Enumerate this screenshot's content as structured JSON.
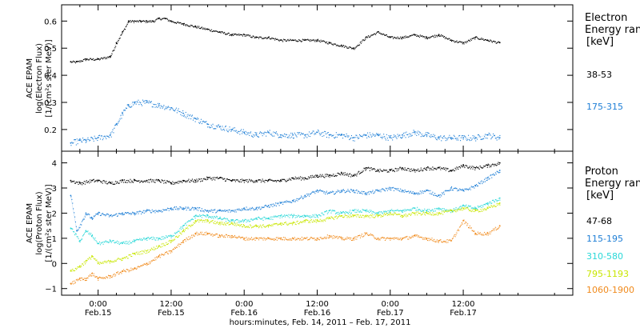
{
  "chart_data": [
    {
      "type": "scatter",
      "ylabel_lines": [
        "ACE EPAM",
        "log(Electron Flux)",
        "[1/(cm²s ster MeV)]"
      ],
      "legend_title_lines": [
        "Electron",
        "Energy ranges",
        "[keV]"
      ],
      "ylim": [
        0.12,
        0.66
      ],
      "yticks": [
        0.2,
        0.3,
        0.4,
        0.5,
        0.6
      ],
      "ytick_labels": [
        "0.2",
        "0.3",
        "0.4",
        "0.5",
        "0.6"
      ],
      "series": [
        {
          "name": "38-53",
          "color": "#000000",
          "x": [
            -4.5,
            -3.5,
            -2,
            0,
            2,
            3,
            4,
            5,
            6,
            7,
            8,
            9,
            10,
            11,
            12,
            14,
            16,
            18,
            20,
            22,
            24,
            26,
            28,
            30,
            32,
            34,
            36,
            38,
            40,
            42,
            44,
            46,
            48,
            50,
            52,
            54,
            56,
            58,
            60,
            62,
            64,
            66
          ],
          "y": [
            0.45,
            0.45,
            0.46,
            0.46,
            0.47,
            0.52,
            0.56,
            0.6,
            0.6,
            0.6,
            0.6,
            0.6,
            0.61,
            0.61,
            0.6,
            0.59,
            0.58,
            0.57,
            0.56,
            0.55,
            0.55,
            0.54,
            0.54,
            0.53,
            0.53,
            0.53,
            0.53,
            0.52,
            0.51,
            0.5,
            0.54,
            0.56,
            0.54,
            0.54,
            0.55,
            0.54,
            0.55,
            0.53,
            0.52,
            0.54,
            0.53,
            0.52
          ]
        },
        {
          "name": "175-315",
          "color": "#1f7fd6",
          "x": [
            -4.5,
            -3,
            -2,
            0,
            2,
            3,
            4,
            5,
            6,
            8,
            10,
            12,
            14,
            16,
            18,
            20,
            22,
            24,
            26,
            28,
            30,
            32,
            34,
            36,
            38,
            40,
            42,
            44,
            46,
            48,
            50,
            52,
            54,
            56,
            58,
            60,
            62,
            64,
            66
          ],
          "y": [
            0.15,
            0.16,
            0.16,
            0.17,
            0.18,
            0.22,
            0.26,
            0.29,
            0.3,
            0.3,
            0.29,
            0.28,
            0.26,
            0.24,
            0.22,
            0.21,
            0.2,
            0.19,
            0.18,
            0.19,
            0.18,
            0.18,
            0.18,
            0.19,
            0.18,
            0.18,
            0.17,
            0.18,
            0.18,
            0.17,
            0.18,
            0.19,
            0.18,
            0.17,
            0.17,
            0.17,
            0.17,
            0.18,
            0.17
          ]
        }
      ]
    },
    {
      "type": "scatter",
      "ylabel_lines": [
        "ACE EPAM",
        "log(Proton Flux)",
        "[1/(cm²s ster MeV)]"
      ],
      "legend_title_lines": [
        "Proton",
        "Energy ranges",
        "[keV]"
      ],
      "ylim": [
        -1.2,
        4.4
      ],
      "yticks": [
        -1,
        0,
        1,
        2,
        3,
        4
      ],
      "ytick_labels": [
        "−1",
        "0",
        "1",
        "2",
        "3",
        "4"
      ],
      "xlabel": "hours:minutes, Feb. 14, 2011 – Feb. 17, 2011",
      "xlim": [
        -6,
        78
      ],
      "xtick_hours": [
        0,
        12,
        24,
        36,
        48,
        60
      ],
      "xtick_labels": [
        [
          "0:00",
          "Feb.15"
        ],
        [
          "12:00",
          "Feb.15"
        ],
        [
          "0:00",
          "Feb.16"
        ],
        [
          "12:00",
          "Feb.16"
        ],
        [
          "0:00",
          "Feb.17"
        ],
        [
          "12:00",
          "Feb.17"
        ]
      ],
      "series": [
        {
          "name": "47-68",
          "color": "#000000",
          "x": [
            -4.5,
            -3,
            -1,
            0,
            2,
            4,
            6,
            8,
            10,
            12,
            14,
            16,
            18,
            20,
            22,
            24,
            26,
            28,
            30,
            32,
            34,
            36,
            38,
            40,
            42,
            44,
            46,
            48,
            50,
            52,
            54,
            56,
            58,
            60,
            62,
            64,
            66
          ],
          "y": [
            3.3,
            3.2,
            3.3,
            3.3,
            3.2,
            3.3,
            3.3,
            3.3,
            3.3,
            3.2,
            3.3,
            3.3,
            3.4,
            3.4,
            3.3,
            3.3,
            3.3,
            3.3,
            3.3,
            3.4,
            3.4,
            3.5,
            3.5,
            3.6,
            3.5,
            3.8,
            3.7,
            3.7,
            3.8,
            3.7,
            3.8,
            3.8,
            3.7,
            3.9,
            3.8,
            3.9,
            4.0
          ]
        },
        {
          "name": "115-195",
          "color": "#1f7fd6",
          "x": [
            -4.5,
            -3.5,
            -2,
            -1,
            0,
            2,
            4,
            6,
            8,
            10,
            12,
            14,
            16,
            18,
            20,
            22,
            24,
            26,
            28,
            30,
            32,
            34,
            36,
            38,
            40,
            42,
            44,
            46,
            48,
            50,
            52,
            54,
            56,
            58,
            60,
            62,
            64,
            66
          ],
          "y": [
            2.7,
            1.3,
            2.0,
            1.8,
            2.0,
            1.9,
            2.0,
            2.0,
            2.1,
            2.1,
            2.2,
            2.2,
            2.2,
            2.1,
            2.1,
            2.1,
            2.2,
            2.2,
            2.3,
            2.4,
            2.5,
            2.7,
            2.9,
            2.8,
            2.9,
            2.9,
            2.8,
            2.9,
            3.0,
            2.9,
            2.8,
            2.9,
            2.7,
            3.0,
            2.9,
            3.1,
            3.4,
            3.7
          ]
        },
        {
          "name": "310-580",
          "color": "#2ad8d8",
          "x": [
            -4.5,
            -3,
            -2,
            -1,
            0,
            2,
            4,
            6,
            8,
            10,
            12,
            14,
            16,
            18,
            20,
            22,
            24,
            26,
            28,
            30,
            32,
            34,
            36,
            38,
            40,
            42,
            44,
            46,
            48,
            50,
            52,
            54,
            56,
            58,
            60,
            62,
            64,
            66
          ],
          "y": [
            1.4,
            0.9,
            1.3,
            1.1,
            0.8,
            0.9,
            0.8,
            0.9,
            1.0,
            1.0,
            1.1,
            1.5,
            1.9,
            1.9,
            1.8,
            1.7,
            1.7,
            1.8,
            1.8,
            1.9,
            1.9,
            1.9,
            1.9,
            2.1,
            2.0,
            2.1,
            2.1,
            2.0,
            2.1,
            2.1,
            2.2,
            2.1,
            2.2,
            2.1,
            2.3,
            2.2,
            2.4,
            2.6
          ]
        },
        {
          "name": "795-1193",
          "color": "#c8e600",
          "x": [
            -4.5,
            -3,
            -2,
            -1,
            0,
            2,
            4,
            6,
            8,
            10,
            12,
            14,
            16,
            18,
            20,
            22,
            24,
            26,
            28,
            30,
            32,
            34,
            36,
            38,
            40,
            42,
            44,
            46,
            48,
            50,
            52,
            54,
            56,
            58,
            60,
            62,
            64,
            66
          ],
          "y": [
            -0.3,
            -0.1,
            0.1,
            0.3,
            0.0,
            0.1,
            0.2,
            0.4,
            0.5,
            0.7,
            0.9,
            1.3,
            1.7,
            1.7,
            1.6,
            1.6,
            1.5,
            1.5,
            1.5,
            1.6,
            1.6,
            1.7,
            1.7,
            1.8,
            1.9,
            1.9,
            1.9,
            1.9,
            2.0,
            1.9,
            2.0,
            2.0,
            2.0,
            2.1,
            2.2,
            2.1,
            2.2,
            2.4
          ]
        },
        {
          "name": "1060-1900",
          "color": "#f08a1c",
          "x": [
            -4.5,
            -3,
            -2,
            -1,
            0,
            2,
            4,
            6,
            8,
            10,
            12,
            14,
            16,
            18,
            20,
            22,
            24,
            26,
            28,
            30,
            32,
            34,
            36,
            38,
            40,
            42,
            44,
            46,
            48,
            50,
            52,
            54,
            56,
            58,
            60,
            62,
            64,
            66
          ],
          "y": [
            -0.8,
            -0.6,
            -0.6,
            -0.4,
            -0.6,
            -0.5,
            -0.3,
            -0.2,
            0.0,
            0.3,
            0.5,
            0.9,
            1.2,
            1.2,
            1.1,
            1.1,
            1.0,
            1.0,
            1.0,
            1.0,
            1.0,
            1.0,
            1.0,
            1.1,
            1.0,
            1.0,
            1.2,
            1.0,
            1.0,
            1.0,
            1.1,
            1.0,
            0.9,
            0.9,
            1.7,
            1.2,
            1.2,
            1.5
          ]
        }
      ]
    }
  ]
}
